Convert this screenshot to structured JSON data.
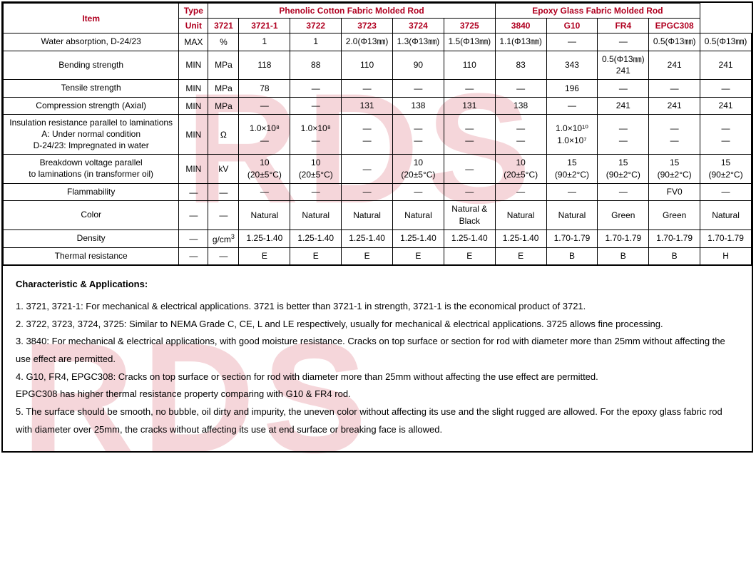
{
  "watermark_text": "RDS",
  "colors": {
    "header_text": "#b00020",
    "border": "#000000",
    "watermark": "rgba(200,30,50,0.18)",
    "background": "#ffffff"
  },
  "header": {
    "item_label": "Item",
    "type_label": "Type",
    "unit_label": "Unit",
    "group1": {
      "title": "Phenolic Cotton Fabric Molded Rod",
      "cols": [
        "3721",
        "3721-1",
        "3722",
        "3723",
        "3724",
        "3725"
      ]
    },
    "group2": {
      "title": "Epoxy Glass Fabric Molded Rod",
      "cols": [
        "3840",
        "G10",
        "FR4",
        "EPGC308"
      ]
    }
  },
  "rows": [
    {
      "name": "Water absorption, D-24/23",
      "type": "MAX",
      "unit": "%",
      "vals": [
        "1",
        "1",
        "2.0(Φ13㎜)",
        "1.3(Φ13㎜)",
        "1.5(Φ13㎜)",
        "1.1(Φ13㎜)",
        "—",
        "—",
        "0.5(Φ13㎜)",
        "0.5(Φ13㎜)"
      ]
    },
    {
      "name": "Bending strength",
      "type": "MIN",
      "unit": "MPa",
      "vals": [
        "118",
        "88",
        "110",
        "90",
        "110",
        "83",
        "343",
        "0.5(Φ13㎜)\n241",
        "241",
        "241"
      ]
    },
    {
      "name": "Tensile strength",
      "type": "MIN",
      "unit": "MPa",
      "vals": [
        "78",
        "—",
        "—",
        "—",
        "—",
        "—",
        "196",
        "—",
        "—",
        "—"
      ]
    },
    {
      "name": "Compression strength (Axial)",
      "type": "MIN",
      "unit": "MPa",
      "vals": [
        "—",
        "—",
        "131",
        "138",
        "131",
        "138",
        "—",
        "241",
        "241",
        "241"
      ]
    },
    {
      "name": "Insulation resistance parallel to laminations\nA: Under normal condition\nD-24/23: Impregnated in water",
      "type": "MIN",
      "unit": "Ω",
      "vals": [
        "1.0×10⁸\n—",
        "1.0×10⁸\n—",
        "—\n—",
        "—\n—",
        "—\n—",
        "—\n—",
        "1.0×10¹⁰\n1.0×10⁷",
        "—\n—",
        "—\n—",
        "—\n—"
      ]
    },
    {
      "name": "Breakdown voltage parallel\nto laminations (in transformer oil)",
      "type": "MIN",
      "unit": "kV",
      "vals": [
        "10\n(20±5°C)",
        "10\n(20±5°C)",
        "—",
        "10\n(20±5°C)",
        "—",
        "10\n(20±5°C)",
        "15\n(90±2°C)",
        "15\n(90±2°C)",
        "15\n(90±2°C)",
        "15\n(90±2°C)"
      ]
    },
    {
      "name": "Flammability",
      "type": "—",
      "unit": "—",
      "vals": [
        "—",
        "—",
        "—",
        "—",
        "—",
        "—",
        "—",
        "—",
        "FV0",
        "—"
      ]
    },
    {
      "name": "Color",
      "type": "—",
      "unit": "—",
      "vals": [
        "Natural",
        "Natural",
        "Natural",
        "Natural",
        "Natural & Black",
        "Natural",
        "Natural",
        "Green",
        "Green",
        "Natural"
      ]
    },
    {
      "name": "Density",
      "type": "—",
      "unit": "g/cm³",
      "vals": [
        "1.25-1.40",
        "1.25-1.40",
        "1.25-1.40",
        "1.25-1.40",
        "1.25-1.40",
        "1.25-1.40",
        "1.70-1.79",
        "1.70-1.79",
        "1.70-1.79",
        "1.70-1.79"
      ]
    },
    {
      "name": "Thermal resistance",
      "type": "—",
      "unit": "—",
      "vals": [
        "E",
        "E",
        "E",
        "E",
        "E",
        "E",
        "B",
        "B",
        "B",
        "H"
      ]
    }
  ],
  "notes": {
    "title": "Characteristic & Applications:",
    "items": [
      "1. 3721, 3721-1: For mechanical & electrical applications. 3721 is better than 3721-1 in strength, 3721-1 is the economical product of 3721.",
      "2. 3722, 3723, 3724, 3725: Similar to NEMA Grade C, CE, L and LE respectively, usually for mechanical & electrical applications. 3725 allows fine processing.",
      "3. 3840: For mechanical & electrical applications, with good moisture resistance. Cracks on top surface or section for rod with diameter more than 25mm without affecting the use effect are permitted.",
      "4. G10, FR4, EPGC308: Cracks on top surface or section for rod with diameter more than 25mm without affecting the use effect are permitted.",
      "   EPGC308 has higher thermal resistance property comparing with G10 & FR4 rod.",
      "5. The surface should be smooth, no bubble, oil dirty and impurity, the uneven color without affecting its use and the slight rugged are allowed. For the epoxy glass fabric rod with diameter over 25mm, the cracks without affecting its use at end surface or breaking face is allowed."
    ]
  }
}
